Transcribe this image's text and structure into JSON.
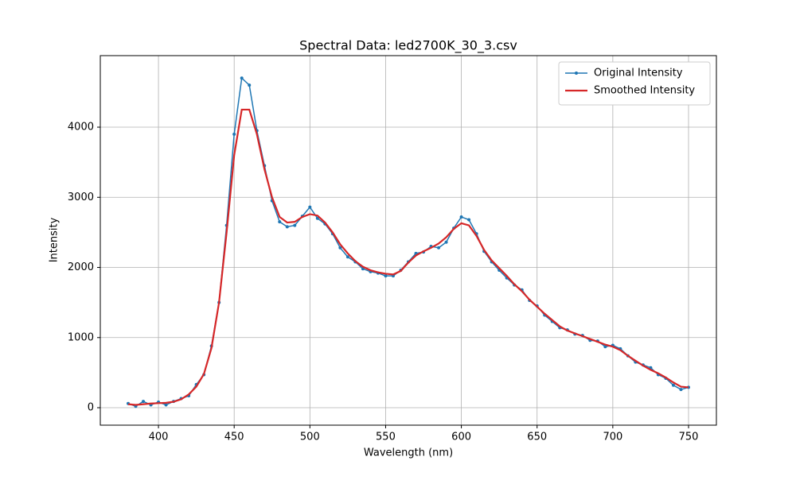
{
  "chart_data": {
    "type": "line",
    "title": "Spectral Data: led2700K_30_3.csv",
    "xlabel": "Wavelength (nm)",
    "ylabel": "Intensity",
    "x": [
      380,
      385,
      390,
      395,
      400,
      405,
      410,
      415,
      420,
      425,
      430,
      435,
      440,
      445,
      450,
      455,
      460,
      465,
      470,
      475,
      480,
      485,
      490,
      495,
      500,
      505,
      510,
      515,
      520,
      525,
      530,
      535,
      540,
      545,
      550,
      555,
      560,
      565,
      570,
      575,
      580,
      585,
      590,
      595,
      600,
      605,
      610,
      615,
      620,
      625,
      630,
      635,
      640,
      645,
      650,
      655,
      660,
      665,
      670,
      675,
      680,
      685,
      690,
      695,
      700,
      705,
      710,
      715,
      720,
      725,
      730,
      735,
      740,
      745,
      750
    ],
    "series": [
      {
        "name": "Original Intensity",
        "color": "#1f77b4",
        "marker": true,
        "values": [
          60,
          20,
          90,
          40,
          80,
          40,
          90,
          130,
          170,
          330,
          470,
          880,
          1500,
          2600,
          3900,
          4700,
          4600,
          3950,
          3450,
          2950,
          2650,
          2580,
          2600,
          2730,
          2860,
          2700,
          2620,
          2480,
          2280,
          2150,
          2080,
          1980,
          1940,
          1920,
          1880,
          1880,
          1960,
          2080,
          2200,
          2220,
          2300,
          2280,
          2360,
          2560,
          2720,
          2680,
          2480,
          2230,
          2080,
          1960,
          1850,
          1750,
          1680,
          1530,
          1450,
          1320,
          1230,
          1140,
          1110,
          1050,
          1030,
          960,
          950,
          870,
          890,
          840,
          740,
          650,
          610,
          570,
          470,
          420,
          320,
          260,
          290
        ]
      },
      {
        "name": "Smoothed Intensity",
        "color": "#d62728",
        "marker": false,
        "values": [
          50,
          40,
          50,
          60,
          65,
          70,
          85,
          120,
          190,
          300,
          480,
          850,
          1500,
          2500,
          3600,
          4250,
          4250,
          3900,
          3400,
          3000,
          2720,
          2640,
          2650,
          2720,
          2760,
          2740,
          2640,
          2500,
          2330,
          2200,
          2090,
          2010,
          1960,
          1930,
          1910,
          1900,
          1950,
          2070,
          2170,
          2230,
          2280,
          2340,
          2430,
          2550,
          2630,
          2600,
          2450,
          2250,
          2100,
          1990,
          1880,
          1760,
          1660,
          1540,
          1440,
          1340,
          1250,
          1160,
          1100,
          1060,
          1020,
          980,
          940,
          900,
          870,
          820,
          740,
          670,
          600,
          540,
          490,
          430,
          360,
          300,
          290
        ]
      }
    ],
    "xlim": [
      361.6,
      768.4
    ],
    "ylim": [
      -249,
      5020
    ],
    "xticks": [
      400,
      450,
      500,
      550,
      600,
      650,
      700,
      750
    ],
    "yticks": [
      0,
      1000,
      2000,
      3000,
      4000
    ],
    "grid": true,
    "legend": "upper right"
  }
}
